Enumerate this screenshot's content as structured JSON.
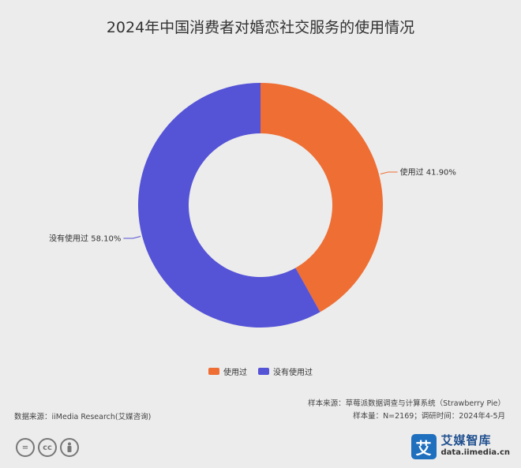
{
  "chart_data": {
    "type": "pie",
    "title": "2024年中国消费者对婚恋社交服务的使用情况",
    "donut": true,
    "categories": [
      "使用过",
      "没有使用过"
    ],
    "values": [
      41.9,
      58.1
    ],
    "labels": [
      "使用过 41.90%",
      "没有使用过 58.10%"
    ],
    "colors": [
      "#ee6e34",
      "#5553d6"
    ],
    "legend": [
      {
        "name": "使用过",
        "color": "#ee6e34"
      },
      {
        "name": "没有使用过",
        "color": "#5553d6"
      }
    ],
    "legend_position": "bottom"
  },
  "source": {
    "left": "数据来源：iiMedia Research(艾媒咨询)",
    "right_line1": "样本来源：草莓派数据调查与计算系统（Strawberry Pie）",
    "right_line2": "样本量：N=2169；调研时间：2024年4-5月"
  },
  "brand": {
    "logo_char": "艾",
    "name": "艾媒智库",
    "url": "data.iimedia.cn"
  },
  "license_icons": [
    "=",
    "cc",
    "person-icon"
  ]
}
